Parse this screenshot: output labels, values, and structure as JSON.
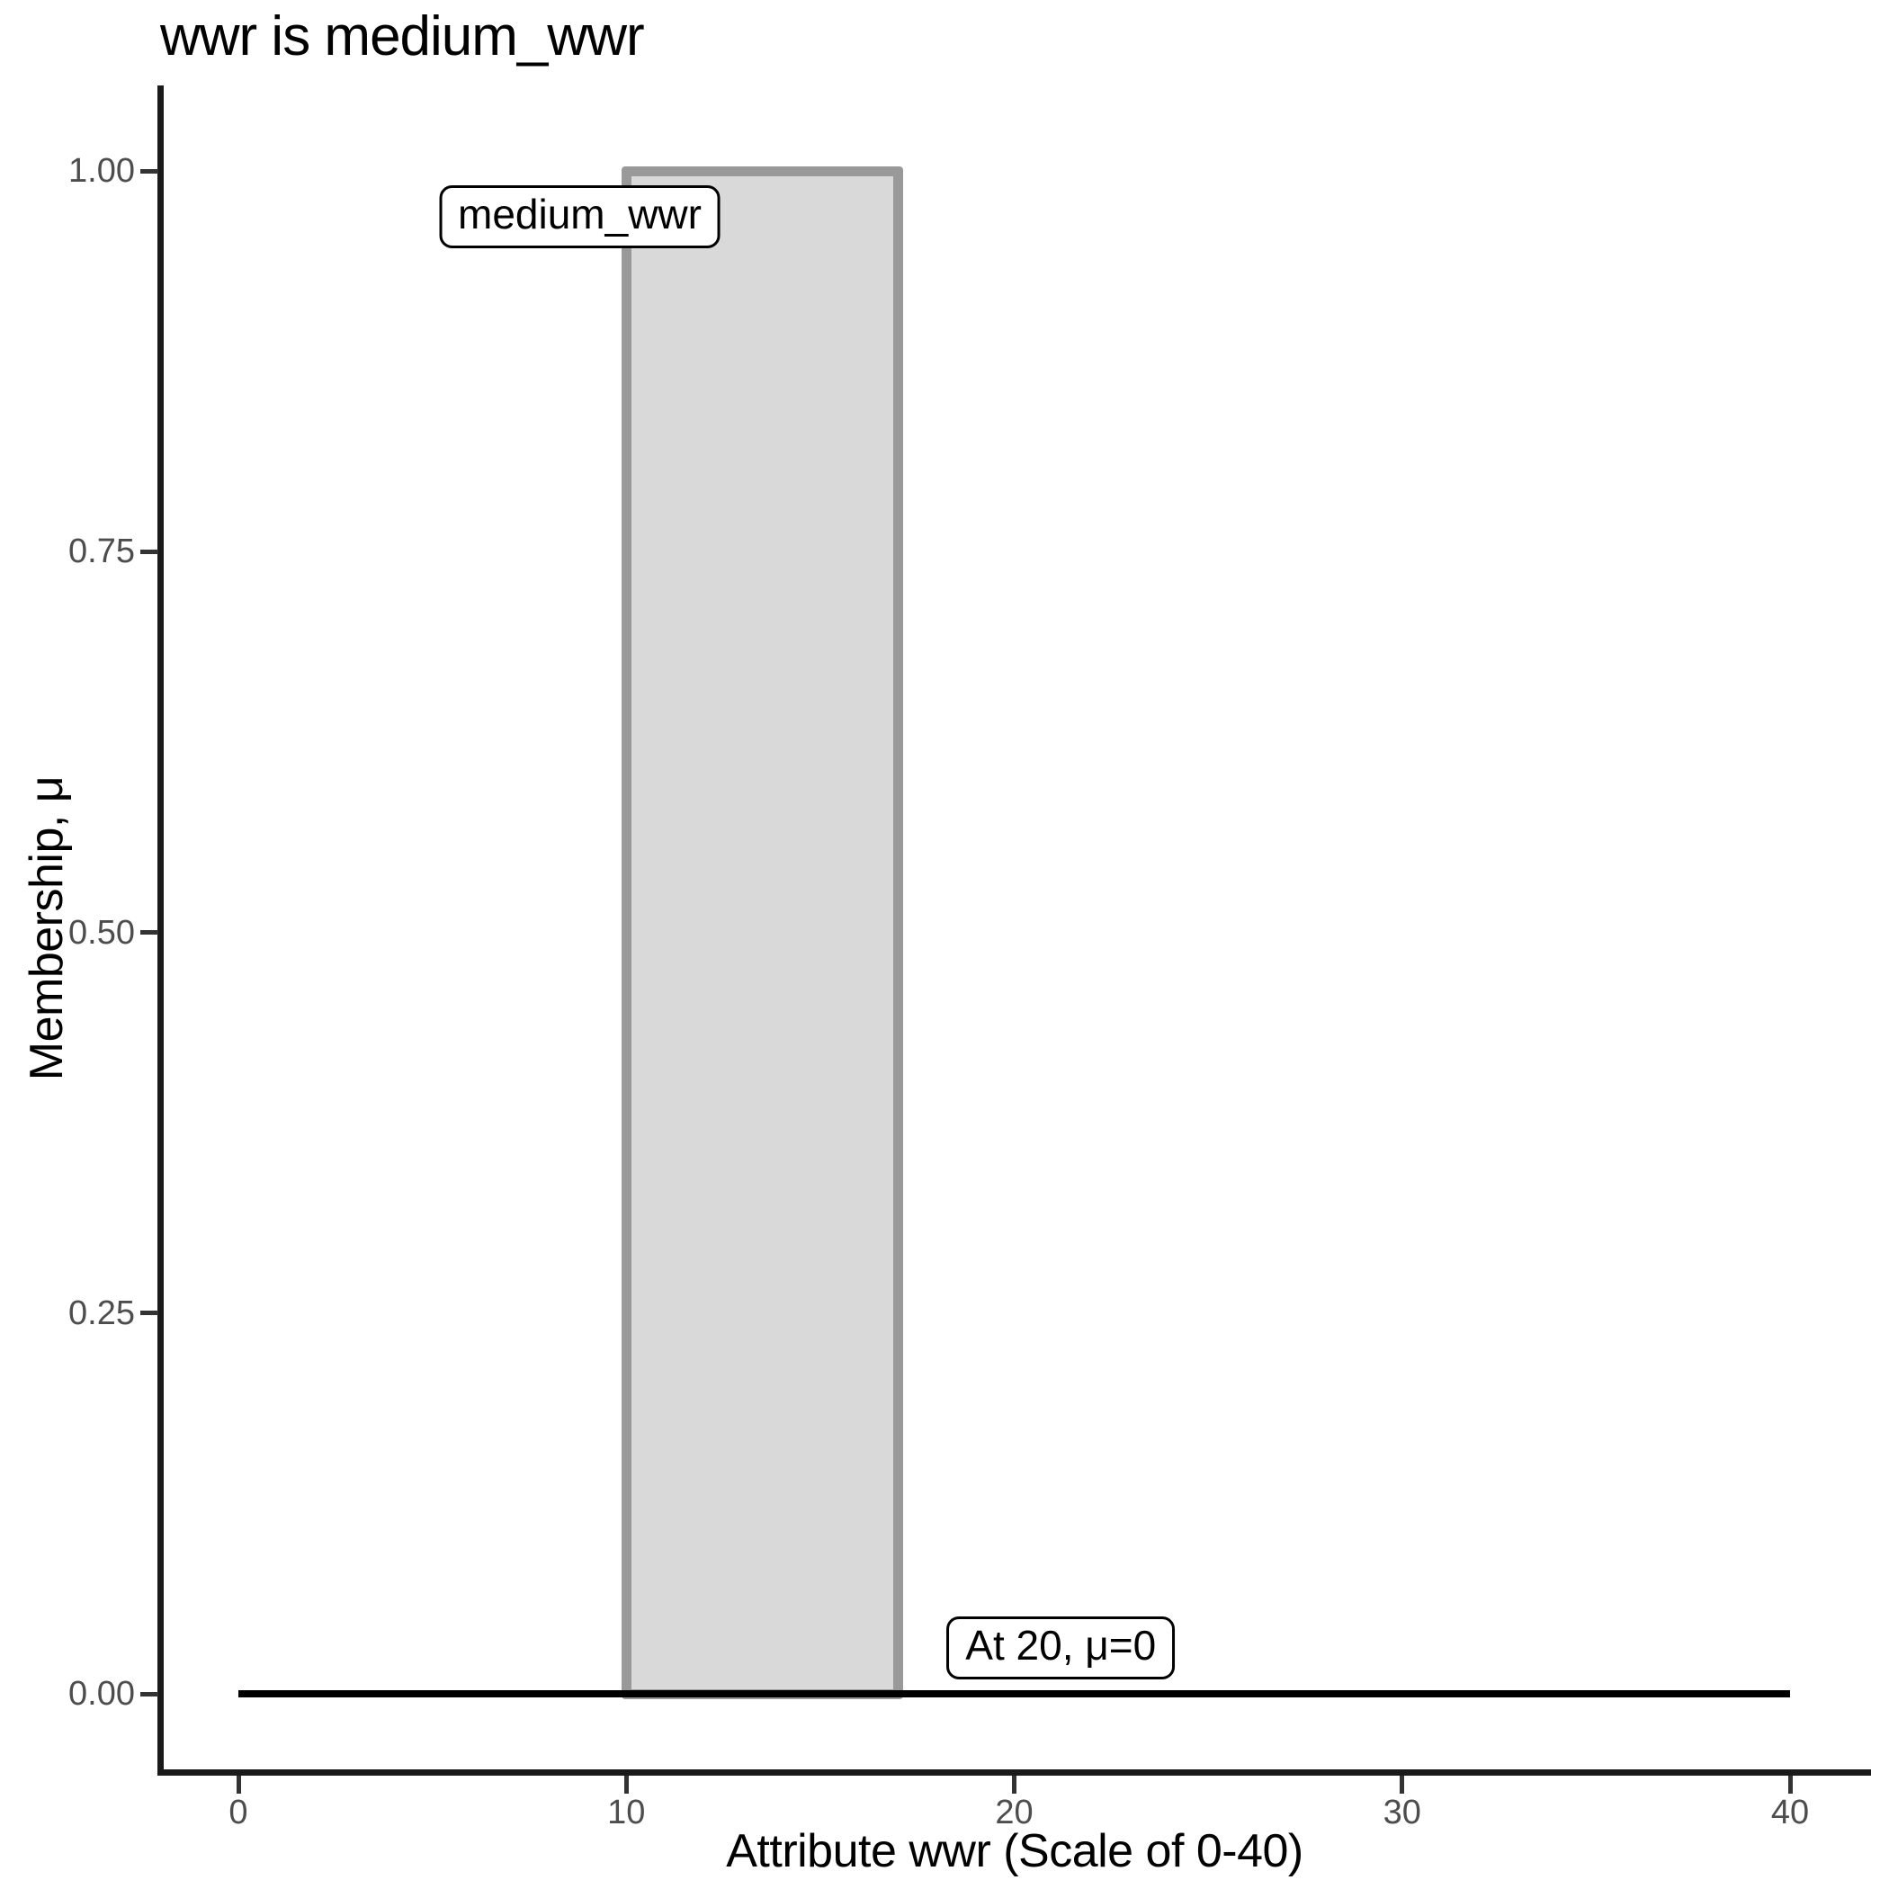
{
  "title": "wwr is medium_wwr",
  "chart_data": {
    "type": "area",
    "subtype": "fuzzy-membership-function",
    "title": "wwr is medium_wwr",
    "xlabel": "Attribute wwr (Scale of 0-40)",
    "ylabel": "Membership, μ",
    "xlim": [
      0,
      40
    ],
    "ylim": [
      0,
      1
    ],
    "grid": false,
    "legend": false,
    "x_ticks": [
      {
        "label": "0",
        "value": 0
      },
      {
        "label": "10",
        "value": 10
      },
      {
        "label": "20",
        "value": 20
      },
      {
        "label": "30",
        "value": 30
      },
      {
        "label": "40",
        "value": 40
      }
    ],
    "y_ticks": [
      {
        "label": "1.00",
        "value": 1.0
      },
      {
        "label": "0.75",
        "value": 0.75
      },
      {
        "label": "0.50",
        "value": 0.5
      },
      {
        "label": "0.25",
        "value": 0.25
      },
      {
        "label": "0.00",
        "value": 0.0
      }
    ],
    "fuzzy_set": {
      "name": "medium_wwr",
      "shape": "rectangle",
      "x_from": 10,
      "x_to": 17,
      "mu_inside": 1,
      "mu_outside": 0
    },
    "series": [
      {
        "name": "medium_wwr membership rectangle",
        "type": "rect",
        "x": [
          10,
          17
        ],
        "y": [
          0,
          1
        ],
        "fill": "#d9d9d9",
        "stroke": "#999999"
      },
      {
        "name": "membership baseline",
        "type": "line",
        "x": [
          0,
          40
        ],
        "y": [
          0,
          0
        ],
        "stroke": "#000000"
      }
    ],
    "annotations": [
      {
        "label": "medium_wwr",
        "x": 8.8,
        "y": 0.97
      },
      {
        "label": "At 20, μ=0",
        "x": 21.2,
        "y": 0.03
      }
    ]
  },
  "colors": {
    "background": "#ffffff",
    "bar_fill": "#d9d9d9",
    "bar_border": "#999999",
    "baseline": "#000000",
    "axis": "#1a1a1a",
    "tick_label": "#4d4d4d",
    "title_text": "#000000",
    "annotation_bg": "#ffffff",
    "annotation_border": "#000000"
  }
}
